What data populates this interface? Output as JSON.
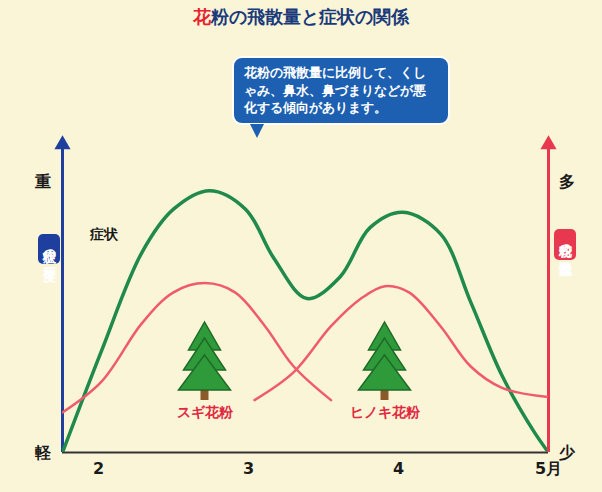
{
  "chart_data": {
    "type": "line",
    "title": "花粉の飛散量と症状の関係",
    "annotation": "花粉の飛散量に比例して、くしゃみ、鼻水、鼻づまりなどが悪化する傾向があります。",
    "y_label": "症状の程度",
    "y2_label": "花粉の飛散量",
    "xlim": [
      1.76,
      5.0
    ],
    "xticks": [
      2,
      3,
      4,
      {
        "value": 5,
        "label": "5月"
      }
    ],
    "ylim": [
      0,
      100
    ],
    "yticks": [
      {
        "value": 0,
        "label": "軽"
      },
      {
        "value": 88,
        "label": "重"
      }
    ],
    "y2lim": [
      0,
      100
    ],
    "y2ticks": [
      {
        "value": 0,
        "label": "少"
      },
      {
        "value": 88,
        "label": "多"
      }
    ],
    "grid": false,
    "series": [
      {
        "name": "症状",
        "color": "#1f8a4c",
        "x": [
          1.76,
          2.02,
          2.29,
          2.5,
          2.74,
          2.98,
          3.17,
          3.39,
          3.61,
          3.81,
          4.03,
          4.28,
          4.48,
          4.69,
          4.9,
          5.0
        ],
        "values": [
          0,
          33,
          65,
          79,
          85,
          79,
          63,
          50,
          57,
          73,
          78,
          71,
          49,
          25,
          7,
          0
        ]
      },
      {
        "name": "スギ花粉",
        "color": "#ef5a6e",
        "axis": "y2",
        "x": [
          1.76,
          2.02,
          2.29,
          2.5,
          2.71,
          2.91,
          3.11,
          3.3,
          3.55
        ],
        "values": [
          13,
          23,
          42,
          52,
          55,
          52,
          41,
          28,
          17
        ]
      },
      {
        "name": "ヒノキ花粉",
        "color": "#ef5a6e",
        "axis": "y2",
        "x": [
          3.04,
          3.3,
          3.55,
          3.75,
          3.91,
          4.07,
          4.28,
          4.48,
          4.69,
          5.0
        ],
        "values": [
          17,
          26,
          41,
          50,
          54,
          52,
          41,
          28,
          21,
          18
        ]
      }
    ]
  }
}
